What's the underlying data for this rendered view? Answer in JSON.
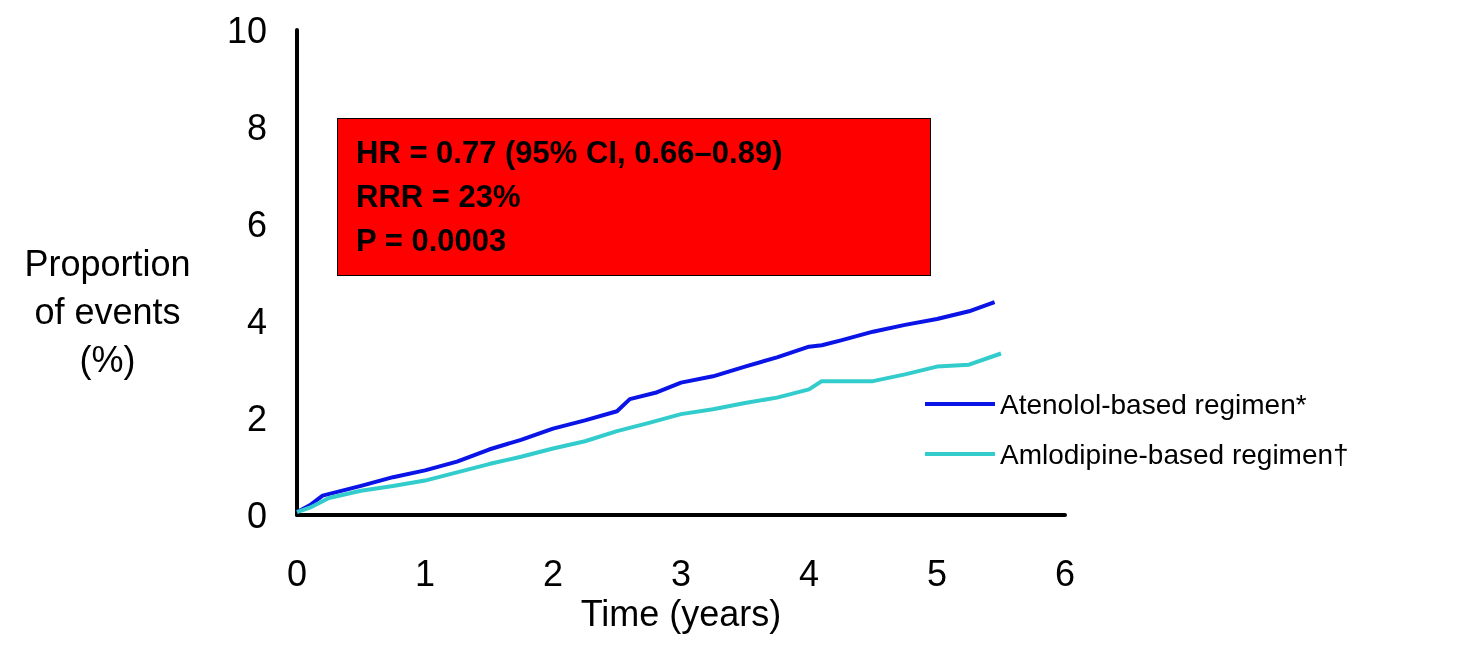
{
  "chart_data": {
    "type": "line",
    "xlabel": "Time (years)",
    "ylabel": "Proportion of events (%)",
    "annotations": [
      "HR = 0.77 (95% CI, 0.66–0.89)",
      "RRR = 23%",
      "P = 0.0003"
    ],
    "xlim": [
      0,
      6
    ],
    "xticks": [
      0,
      1,
      2,
      3,
      4,
      5,
      6
    ],
    "ylim": [
      0,
      10
    ],
    "yticks": [
      0,
      2,
      4,
      6,
      8,
      10
    ],
    "grid": false,
    "legend": "right",
    "marker": "none",
    "line_style": "solid",
    "series": [
      {
        "name": "Atenolol-based regimen*",
        "color": "#0a14e6",
        "x": [
          0,
          0.1,
          0.2,
          0.5,
          0.75,
          1,
          1.25,
          1.5,
          1.75,
          2,
          2.25,
          2.5,
          2.6,
          2.8,
          3,
          3.25,
          3.5,
          3.75,
          4,
          4.1,
          4.25,
          4.5,
          4.75,
          5,
          5.25,
          5.45
        ],
        "values": [
          0.06,
          0.2,
          0.4,
          0.6,
          0.78,
          0.92,
          1.1,
          1.35,
          1.55,
          1.78,
          1.95,
          2.14,
          2.39,
          2.52,
          2.73,
          2.86,
          3.06,
          3.25,
          3.47,
          3.5,
          3.6,
          3.78,
          3.92,
          4.04,
          4.2,
          4.39
        ]
      },
      {
        "name": "Amlodipine-based regimen†",
        "color": "#33cccc",
        "x": [
          0,
          0.1,
          0.25,
          0.5,
          0.75,
          1,
          1.25,
          1.5,
          1.75,
          2,
          2.25,
          2.5,
          2.75,
          3,
          3.25,
          3.5,
          3.75,
          4,
          4.1,
          4.25,
          4.5,
          4.75,
          5,
          5.25,
          5.5
        ],
        "values": [
          0.06,
          0.15,
          0.35,
          0.5,
          0.6,
          0.71,
          0.88,
          1.05,
          1.2,
          1.37,
          1.52,
          1.73,
          1.9,
          2.08,
          2.18,
          2.31,
          2.42,
          2.59,
          2.76,
          2.76,
          2.76,
          2.9,
          3.06,
          3.1,
          3.33
        ]
      }
    ]
  }
}
